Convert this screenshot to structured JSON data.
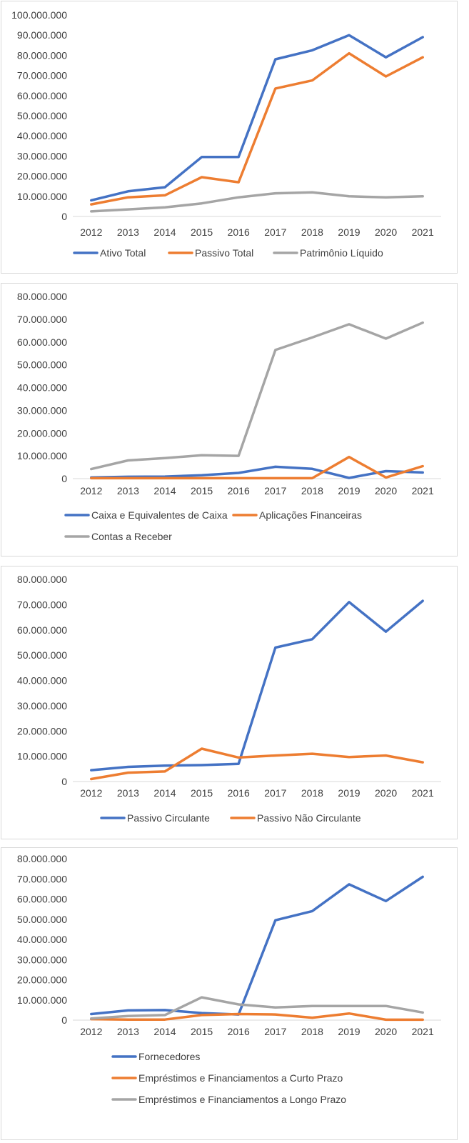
{
  "chart_data": [
    {
      "type": "line",
      "x": [
        "2012",
        "2013",
        "2014",
        "2015",
        "2016",
        "2017",
        "2018",
        "2019",
        "2020",
        "2021"
      ],
      "ylim": [
        0,
        100000000
      ],
      "y_ticks": [
        "0",
        "10.000.000",
        "20.000.000",
        "30.000.000",
        "40.000.000",
        "50.000.000",
        "60.000.000",
        "70.000.000",
        "80.000.000",
        "90.000.000",
        "100.000.000"
      ],
      "grid": false,
      "legend_position": "bottom",
      "series": [
        {
          "name": "Ativo Total",
          "color": "#4472C4",
          "values": [
            8000000,
            12500000,
            14500000,
            29500000,
            29500000,
            78000000,
            82500000,
            90000000,
            79000000,
            89000000
          ]
        },
        {
          "name": "Passivo Total",
          "color": "#ED7D31",
          "values": [
            6000000,
            9500000,
            10500000,
            19500000,
            17000000,
            63500000,
            67500000,
            81000000,
            69500000,
            79000000
          ]
        },
        {
          "name": "Patrimônio Líquido",
          "color": "#A5A5A5",
          "values": [
            2500000,
            3500000,
            4500000,
            6500000,
            9500000,
            11500000,
            12000000,
            10000000,
            9500000,
            10000000
          ]
        }
      ]
    },
    {
      "type": "line",
      "x": [
        "2012",
        "2013",
        "2014",
        "2015",
        "2016",
        "2017",
        "2018",
        "2019",
        "2020",
        "2021"
      ],
      "ylim": [
        0,
        80000000
      ],
      "y_ticks": [
        "0",
        "10.000.000",
        "20.000.000",
        "30.000.000",
        "40.000.000",
        "50.000.000",
        "60.000.000",
        "70.000.000",
        "80.000.000"
      ],
      "grid": false,
      "legend_position": "bottom",
      "series": [
        {
          "name": "Caixa e Equivalentes de Caixa",
          "color": "#4472C4",
          "values": [
            500000,
            800000,
            900000,
            1500000,
            2500000,
            5200000,
            4300000,
            300000,
            3300000,
            2700000
          ]
        },
        {
          "name": "Aplicações Financeiras",
          "color": "#ED7D31",
          "values": [
            200000,
            200000,
            200000,
            200000,
            200000,
            200000,
            200000,
            9500000,
            500000,
            5500000
          ]
        },
        {
          "name": "Contas a Receber",
          "color": "#A5A5A5",
          "values": [
            4200000,
            8000000,
            9000000,
            10300000,
            10000000,
            56500000,
            62000000,
            67800000,
            61500000,
            68500000
          ]
        }
      ]
    },
    {
      "type": "line",
      "x": [
        "2012",
        "2013",
        "2014",
        "2015",
        "2016",
        "2017",
        "2018",
        "2019",
        "2020",
        "2021"
      ],
      "ylim": [
        0,
        80000000
      ],
      "y_ticks": [
        "0",
        "10.000.000",
        "20.000.000",
        "30.000.000",
        "40.000.000",
        "50.000.000",
        "60.000.000",
        "70.000.000",
        "80.000.000"
      ],
      "grid": false,
      "legend_position": "bottom",
      "series": [
        {
          "name": "Passivo Circulante",
          "color": "#4472C4",
          "values": [
            4500000,
            5800000,
            6300000,
            6500000,
            7000000,
            53000000,
            56300000,
            71000000,
            59300000,
            71500000
          ]
        },
        {
          "name": "Passivo Não Circulante",
          "color": "#ED7D31",
          "values": [
            1000000,
            3500000,
            4000000,
            13000000,
            9500000,
            10300000,
            11000000,
            9700000,
            10300000,
            7600000
          ]
        }
      ]
    },
    {
      "type": "line",
      "x": [
        "2012",
        "2013",
        "2014",
        "2015",
        "2016",
        "2017",
        "2018",
        "2019",
        "2020",
        "2021"
      ],
      "ylim": [
        0,
        80000000
      ],
      "y_ticks": [
        "0",
        "10.000.000",
        "20.000.000",
        "30.000.000",
        "40.000.000",
        "50.000.000",
        "60.000.000",
        "70.000.000",
        "80.000.000"
      ],
      "grid": false,
      "legend_position": "bottom",
      "series": [
        {
          "name": "Fornecedores",
          "color": "#4472C4",
          "values": [
            3000000,
            4800000,
            5000000,
            3500000,
            2800000,
            49500000,
            54000000,
            67300000,
            59000000,
            71000000
          ]
        },
        {
          "name": "Empréstimos e Financiamentos a Curto Prazo",
          "color": "#ED7D31",
          "values": [
            500000,
            300000,
            300000,
            2500000,
            3000000,
            2800000,
            1200000,
            3300000,
            200000,
            200000
          ]
        },
        {
          "name": "Empréstimos e Financiamentos a Longo Prazo",
          "color": "#A5A5A5",
          "values": [
            800000,
            2000000,
            2500000,
            11300000,
            7800000,
            6300000,
            7000000,
            7000000,
            7000000,
            3800000
          ]
        }
      ]
    }
  ]
}
